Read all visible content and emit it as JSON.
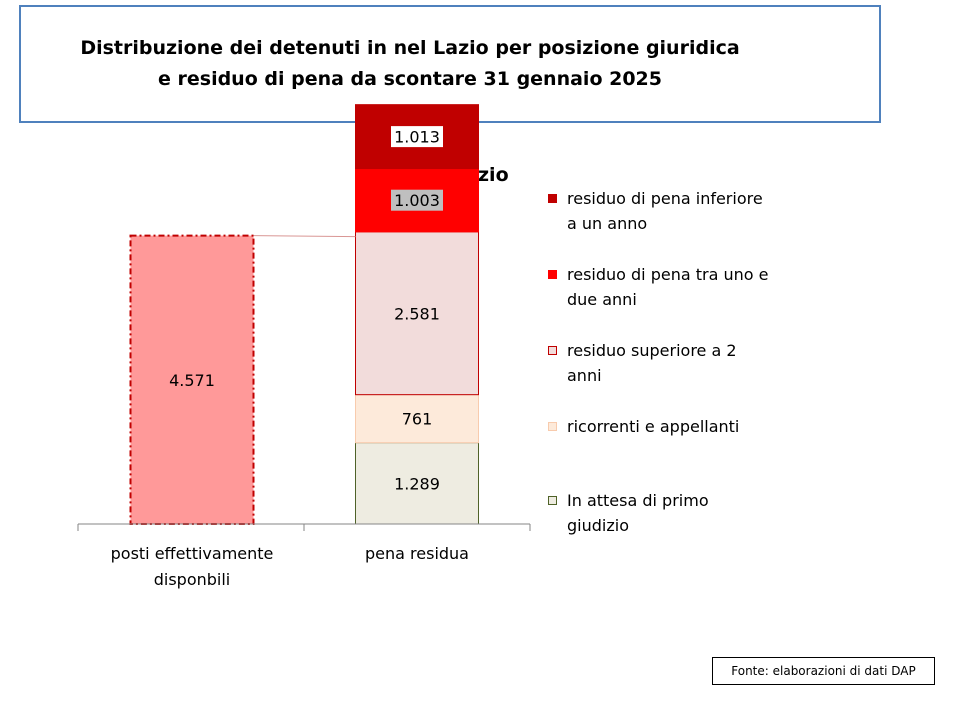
{
  "header": {
    "title_line1": "Distribuzione dei detenuti in nel Lazio per posizione giuridica",
    "title_line2": "e residuo di pena da scontare 31 gennaio 2025"
  },
  "chart_data": {
    "type": "bar",
    "stacked": true,
    "title": "Regione Lazio",
    "categories": [
      "posti effettivamente disponbili",
      "pena residua"
    ],
    "category_lines": [
      [
        "posti effettivamente",
        "disponbili"
      ],
      [
        "pena residua"
      ]
    ],
    "ylim": [
      0,
      6800
    ],
    "grid": false,
    "legend_position": "right",
    "series": [
      {
        "name": "posti effettivamente disponbili",
        "values": [
          4571,
          null
        ],
        "label": "4.571",
        "color": "#ff9999",
        "border": "#c00000",
        "dashed": true
      },
      {
        "name": "In attesa di primo giudizio",
        "values": [
          null,
          1289
        ],
        "label": "1.289",
        "color": "#eeece1",
        "border": "#4f6228"
      },
      {
        "name": "ricorrenti e appellanti",
        "values": [
          null,
          761
        ],
        "label": "761",
        "color": "#fdeada",
        "border": "#f8cbad"
      },
      {
        "name": "residuo superiore a 2 anni",
        "values": [
          null,
          2581
        ],
        "label": "2.581",
        "color": "#f2dcdb",
        "border": "#c00000"
      },
      {
        "name": "residuo di pena tra uno e due anni",
        "values": [
          null,
          1003
        ],
        "label": "1.003",
        "color": "#ff0000",
        "border": "#ff0000",
        "label_bg": "#bfbfbf"
      },
      {
        "name": "residuo di pena inferiore a un anno",
        "values": [
          null,
          1013
        ],
        "label": "1.013",
        "color": "#c00000",
        "border": "#c00000",
        "label_bg": "#ffffff"
      }
    ],
    "legend": [
      {
        "lines": [
          "residuo di pena inferiore",
          "a un anno"
        ],
        "color": "#c00000",
        "border": "#c00000"
      },
      {
        "lines": [
          "residuo di pena tra uno e",
          "due anni"
        ],
        "color": "#ff0000",
        "border": "#ff0000"
      },
      {
        "lines": [
          "residuo superiore a 2",
          "anni"
        ],
        "color": "#f2dcdb",
        "border": "#c00000"
      },
      {
        "lines": [
          "ricorrenti e appellanti"
        ],
        "color": "#fdeada",
        "border": "#f8cbad"
      },
      {
        "lines": [
          "In attesa di primo",
          "giudizio"
        ],
        "color": "#eeece1",
        "border": "#4f6228"
      }
    ]
  },
  "footer": {
    "source": "Fonte: elaborazioni di dati DAP"
  }
}
